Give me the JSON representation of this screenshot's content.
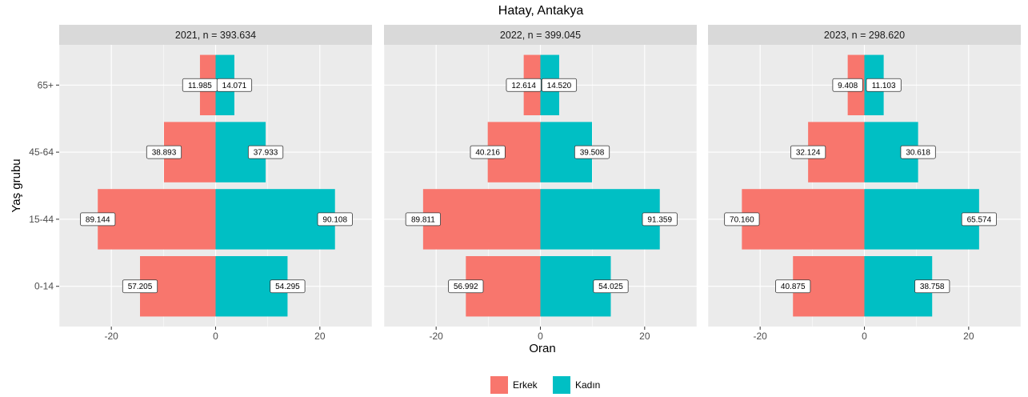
{
  "chart_data": {
    "type": "bar",
    "orientation": "horizontal",
    "title": "Hatay, Antakya",
    "xlabel": "Oran",
    "ylabel": "Yaş grubu",
    "xlim": [
      -30,
      30
    ],
    "xticks": [
      -20,
      0,
      20
    ],
    "xtick_labels": [
      "-20",
      "0",
      "20"
    ],
    "categories": [
      "0-14",
      "15-44",
      "45-64",
      "65+"
    ],
    "legend": {
      "position": "bottom",
      "items": [
        {
          "name": "Erkek",
          "color": "#F8766D"
        },
        {
          "name": "Kadın",
          "color": "#00BFC4"
        }
      ]
    },
    "panels": [
      {
        "strip": "2021, n = 393.634",
        "series": [
          {
            "name": "Erkek",
            "values": [
              -14.5,
              -22.6,
              -9.9,
              -3.0
            ],
            "labels": [
              "57.205",
              "89.144",
              "38.893",
              "11.985"
            ]
          },
          {
            "name": "Kadın",
            "values": [
              13.8,
              22.9,
              9.6,
              3.6
            ],
            "labels": [
              "54.295",
              "90.108",
              "37.933",
              "14.071"
            ]
          }
        ]
      },
      {
        "strip": "2022, n = 399.045",
        "series": [
          {
            "name": "Erkek",
            "values": [
              -14.3,
              -22.5,
              -10.1,
              -3.2
            ],
            "labels": [
              "56.992",
              "89.811",
              "40.216",
              "12.614"
            ]
          },
          {
            "name": "Kadın",
            "values": [
              13.5,
              22.9,
              9.9,
              3.6
            ],
            "labels": [
              "54.025",
              "91.359",
              "39.508",
              "14.520"
            ]
          }
        ]
      },
      {
        "strip": "2023, n = 298.620",
        "series": [
          {
            "name": "Erkek",
            "values": [
              -13.7,
              -23.5,
              -10.8,
              -3.2
            ],
            "labels": [
              "40.875",
              "70.160",
              "32.124",
              "9.408"
            ]
          },
          {
            "name": "Kadın",
            "values": [
              13.0,
              22.0,
              10.3,
              3.7
            ],
            "labels": [
              "38.758",
              "65.574",
              "30.618",
              "11.103"
            ]
          }
        ]
      }
    ]
  }
}
